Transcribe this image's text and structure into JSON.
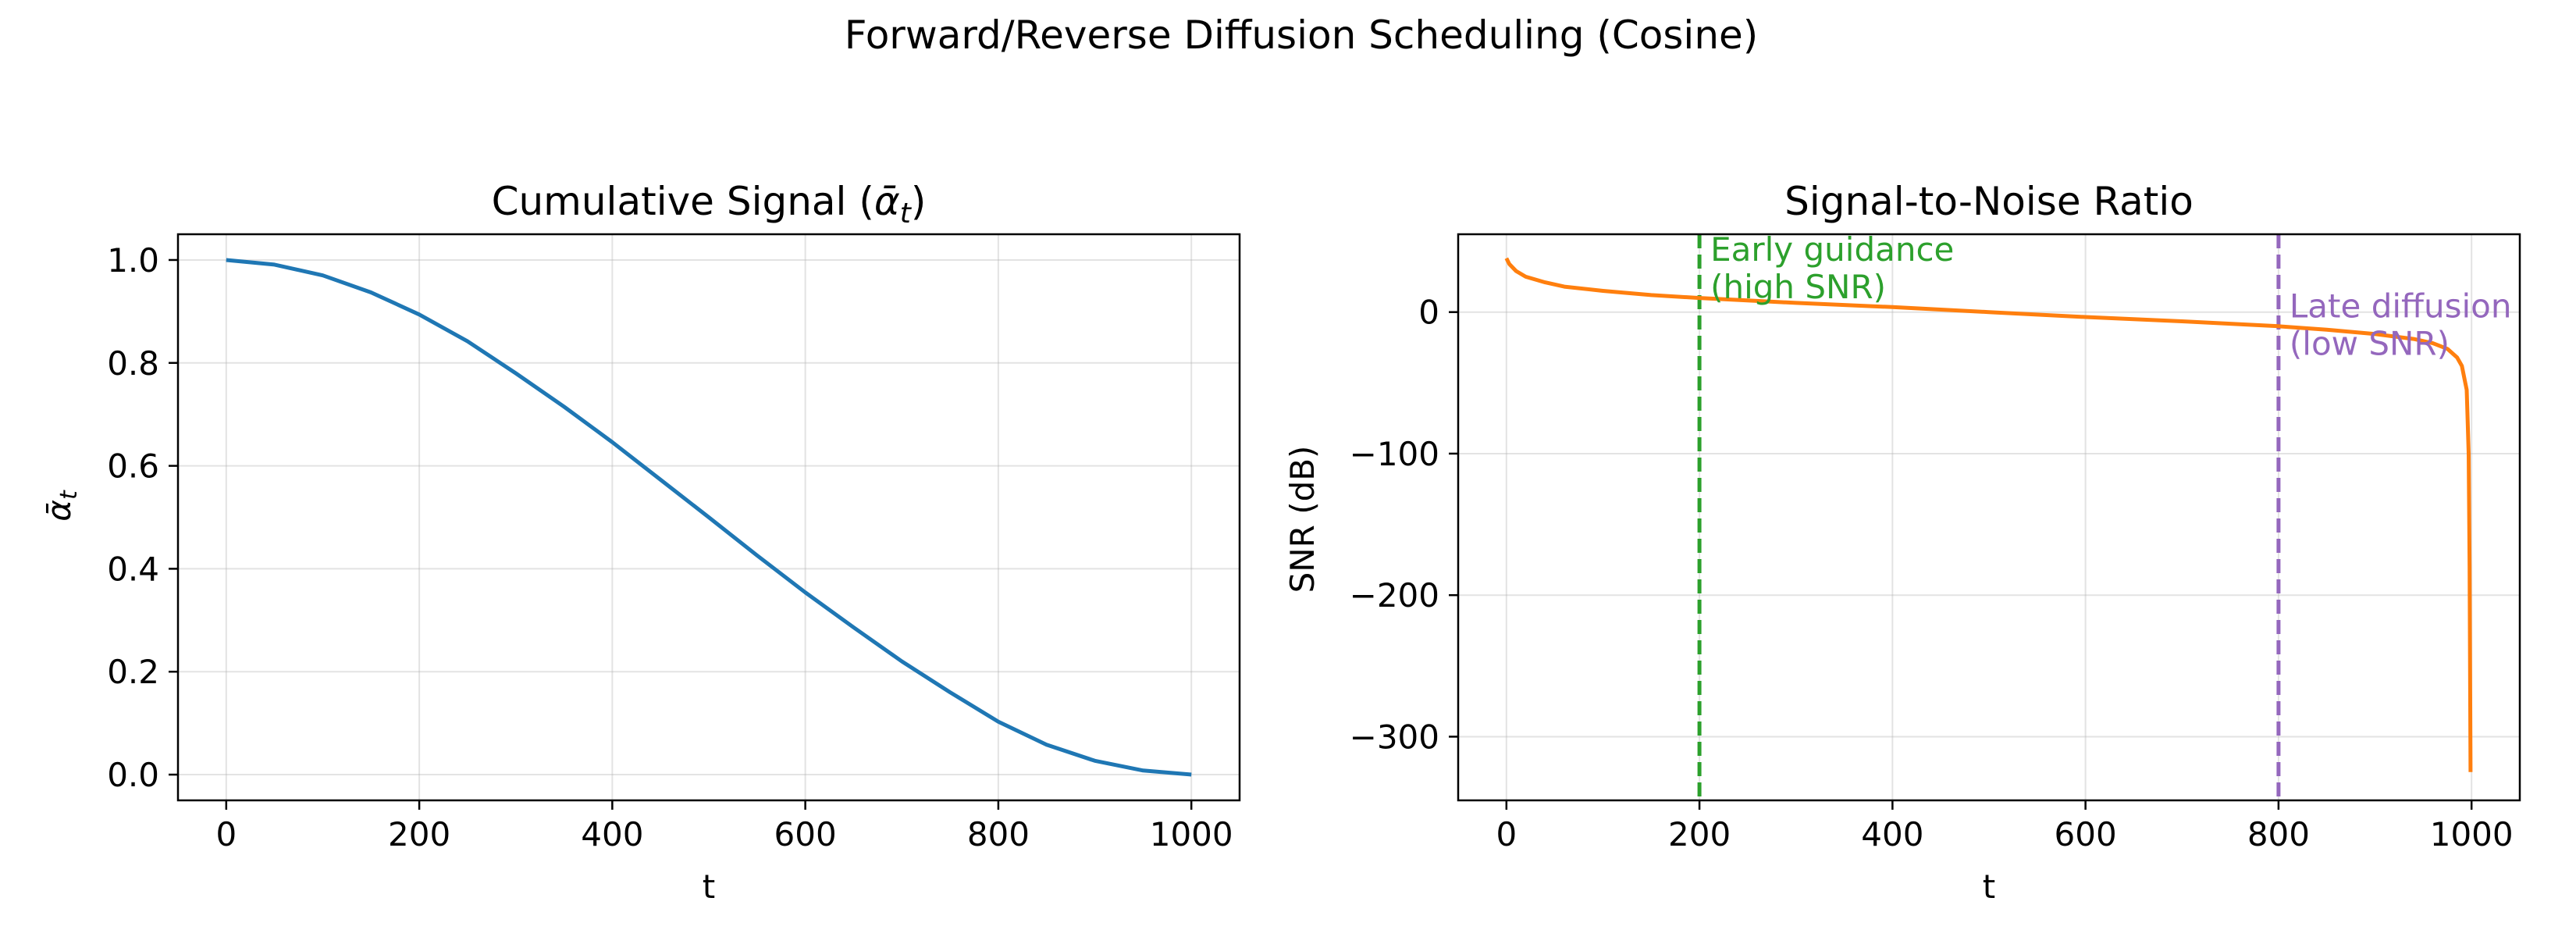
{
  "figure": {
    "suptitle": "Forward/Reverse Diffusion Scheduling (Cosine)"
  },
  "chart_data": [
    {
      "type": "line",
      "title": "Cumulative Signal (ᾱt)",
      "title_main": "Cumulative Signal (",
      "title_symbol": "ᾱ",
      "title_sub": "t",
      "title_close": ")",
      "xlabel": "t",
      "ylabel": "ᾱt",
      "ylabel_symbol": "ᾱ",
      "ylabel_sub": "t",
      "xlim": [
        -50,
        1050
      ],
      "ylim": [
        -0.05,
        1.05
      ],
      "xticks": [
        0,
        200,
        400,
        600,
        800,
        1000
      ],
      "yticks": [
        0.0,
        0.2,
        0.4,
        0.6,
        0.8,
        1.0
      ],
      "xtick_labels": [
        "0",
        "200",
        "400",
        "600",
        "800",
        "1000"
      ],
      "ytick_labels": [
        "0.0",
        "0.2",
        "0.4",
        "0.6",
        "0.8",
        "1.0"
      ],
      "grid": true,
      "series": [
        {
          "color": "#1f77b4",
          "x": [
            0,
            50,
            100,
            150,
            200,
            250,
            300,
            350,
            400,
            450,
            500,
            550,
            600,
            650,
            700,
            750,
            800,
            850,
            900,
            950,
            1000
          ],
          "y": [
            1.0,
            0.991,
            0.97,
            0.937,
            0.894,
            0.842,
            0.78,
            0.715,
            0.646,
            0.573,
            0.5,
            0.426,
            0.354,
            0.286,
            0.22,
            0.16,
            0.103,
            0.058,
            0.027,
            0.008,
            0.0
          ]
        }
      ]
    },
    {
      "type": "line",
      "title": "Signal-to-Noise Ratio",
      "xlabel": "t",
      "ylabel": "SNR (dB)",
      "xlim": [
        -50,
        1050
      ],
      "ylim": [
        -345,
        55
      ],
      "xticks": [
        0,
        200,
        400,
        600,
        800,
        1000
      ],
      "yticks": [
        0,
        -100,
        -200,
        -300
      ],
      "xtick_labels": [
        "0",
        "200",
        "400",
        "600",
        "800",
        "1000"
      ],
      "ytick_labels": [
        "0",
        "−100",
        "−200",
        "−300"
      ],
      "grid": true,
      "series": [
        {
          "color": "#ff7f0e",
          "x": [
            0,
            3,
            10,
            20,
            40,
            60,
            100,
            150,
            200,
            300,
            400,
            500,
            600,
            700,
            800,
            850,
            900,
            940,
            960,
            975,
            985,
            990,
            995,
            997,
            998,
            999
          ],
          "y": [
            38.0,
            34.0,
            29.0,
            25.0,
            21.0,
            18.0,
            15.0,
            12.0,
            10.0,
            6.5,
            3.5,
            0.0,
            -3.5,
            -6.5,
            -10.0,
            -12.5,
            -15.5,
            -19.0,
            -22.0,
            -26.0,
            -32.0,
            -38.0,
            -55.0,
            -100.0,
            -180.0,
            -325.0
          ]
        }
      ],
      "vlines": [
        {
          "x": 200,
          "color": "#2ca02c",
          "style": "dashed"
        },
        {
          "x": 800,
          "color": "#9467bd",
          "style": "dashed"
        }
      ],
      "annotations": [
        {
          "lines": [
            "Early guidance",
            "(high SNR)"
          ],
          "x": 200,
          "y": 55,
          "color": "#2ca02c"
        },
        {
          "lines": [
            "Late diffusion",
            "(low SNR)"
          ],
          "x": 800,
          "y": 15,
          "color": "#9467bd"
        }
      ]
    }
  ]
}
